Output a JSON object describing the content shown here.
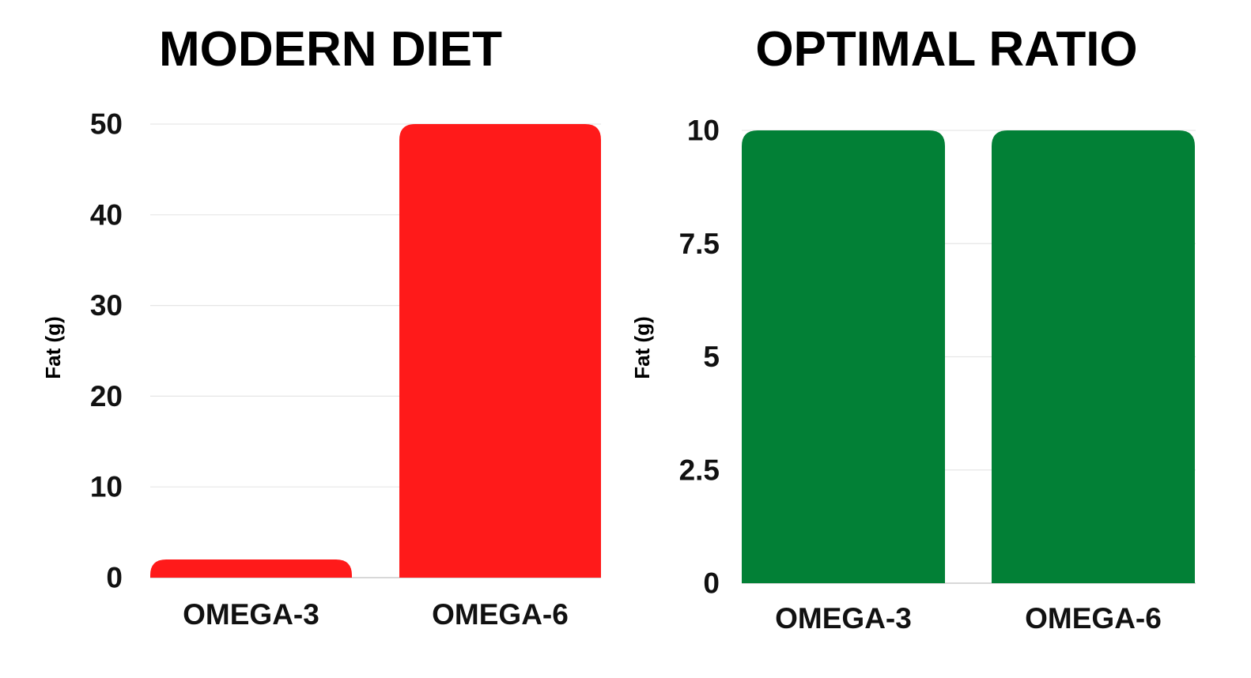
{
  "chart_data": [
    {
      "type": "bar",
      "title": "MODERN DIET",
      "ylabel": "Fat (g)",
      "xlabel": "",
      "categories": [
        "OMEGA-3",
        "OMEGA-6"
      ],
      "values": [
        2,
        50
      ],
      "ylim": [
        0,
        50
      ],
      "yticks": [
        0,
        10,
        20,
        30,
        40,
        50
      ],
      "ytick_labels": [
        "0",
        "10",
        "20",
        "30",
        "40",
        "50"
      ],
      "grid": true,
      "color": "#ff1a1a"
    },
    {
      "type": "bar",
      "title": "OPTIMAL RATIO",
      "ylabel": "Fat (g)",
      "xlabel": "",
      "categories": [
        "OMEGA-3",
        "OMEGA-6"
      ],
      "values": [
        10,
        10
      ],
      "ylim": [
        0,
        10
      ],
      "yticks": [
        0,
        2.5,
        5,
        7.5,
        10
      ],
      "ytick_labels": [
        "0",
        "2.5",
        "5",
        "7.5",
        "10"
      ],
      "grid": true,
      "color": "#028036"
    }
  ]
}
